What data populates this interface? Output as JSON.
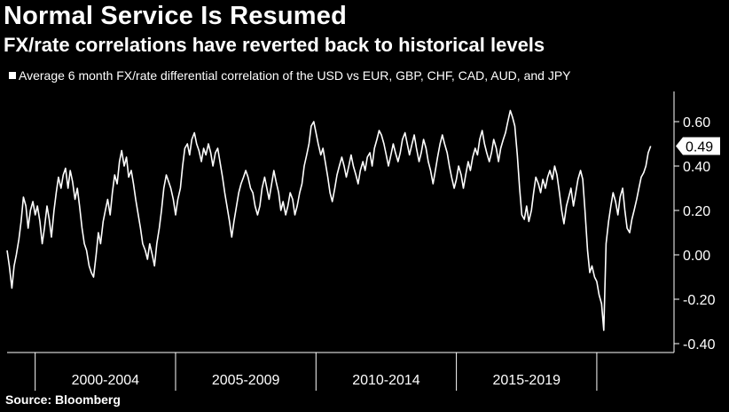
{
  "header": {
    "title": "Normal Service Is Resumed",
    "subtitle": "FX/rate correlations have reverted back to historical levels"
  },
  "footer": {
    "source": "Source: Bloomberg"
  },
  "colors": {
    "background": "#000000",
    "line": "#ffffff",
    "text": "#ffffff"
  },
  "chart_data": {
    "type": "line",
    "title": "Normal Service Is Resumed",
    "subtitle": "FX/rate correlations have reverted back to historical levels",
    "xlabel": "",
    "ylabel": "",
    "legend_position": "top-left",
    "grid": false,
    "ylim": [
      -0.42,
      0.68
    ],
    "xlim": [
      1999.0,
      2022.75
    ],
    "x_categories": [
      "2000-2004",
      "2005-2009",
      "2010-2014",
      "2015-2019"
    ],
    "y_ticks": [
      0.6,
      0.4,
      0.2,
      0.0,
      -0.2,
      -0.4
    ],
    "y_tick_labels": [
      "0.60",
      "0.40",
      "0.20",
      "0.00",
      "-0.20",
      "-0.40"
    ],
    "last_value_label": "0.49",
    "series": [
      {
        "name": "Average 6 month FX/rate differential correlation of the USD vs EUR, GBP, CHF, CAD, AUD, and JPY",
        "color": "#ffffff",
        "points": [
          [
            1999.0,
            0.02
          ],
          [
            1999.08,
            -0.05
          ],
          [
            1999.17,
            -0.15
          ],
          [
            1999.25,
            -0.05
          ],
          [
            1999.33,
            0.0
          ],
          [
            1999.42,
            0.07
          ],
          [
            1999.5,
            0.15
          ],
          [
            1999.58,
            0.26
          ],
          [
            1999.67,
            0.22
          ],
          [
            1999.75,
            0.12
          ],
          [
            1999.83,
            0.2
          ],
          [
            1999.92,
            0.24
          ],
          [
            2000.0,
            0.18
          ],
          [
            2000.08,
            0.22
          ],
          [
            2000.17,
            0.15
          ],
          [
            2000.25,
            0.05
          ],
          [
            2000.33,
            0.12
          ],
          [
            2000.42,
            0.22
          ],
          [
            2000.5,
            0.16
          ],
          [
            2000.58,
            0.08
          ],
          [
            2000.67,
            0.2
          ],
          [
            2000.75,
            0.28
          ],
          [
            2000.83,
            0.35
          ],
          [
            2000.92,
            0.3
          ],
          [
            2001.0,
            0.36
          ],
          [
            2001.08,
            0.39
          ],
          [
            2001.17,
            0.3
          ],
          [
            2001.25,
            0.38
          ],
          [
            2001.33,
            0.33
          ],
          [
            2001.42,
            0.25
          ],
          [
            2001.5,
            0.3
          ],
          [
            2001.58,
            0.22
          ],
          [
            2001.67,
            0.12
          ],
          [
            2001.75,
            0.05
          ],
          [
            2001.83,
            0.02
          ],
          [
            2001.92,
            -0.05
          ],
          [
            2002.0,
            -0.08
          ],
          [
            2002.08,
            -0.1
          ],
          [
            2002.17,
            0.0
          ],
          [
            2002.25,
            0.1
          ],
          [
            2002.33,
            0.05
          ],
          [
            2002.42,
            0.15
          ],
          [
            2002.5,
            0.2
          ],
          [
            2002.58,
            0.25
          ],
          [
            2002.67,
            0.18
          ],
          [
            2002.75,
            0.28
          ],
          [
            2002.83,
            0.36
          ],
          [
            2002.92,
            0.32
          ],
          [
            2003.0,
            0.42
          ],
          [
            2003.08,
            0.47
          ],
          [
            2003.17,
            0.4
          ],
          [
            2003.25,
            0.44
          ],
          [
            2003.33,
            0.35
          ],
          [
            2003.42,
            0.38
          ],
          [
            2003.5,
            0.32
          ],
          [
            2003.58,
            0.25
          ],
          [
            2003.67,
            0.18
          ],
          [
            2003.75,
            0.12
          ],
          [
            2003.83,
            0.05
          ],
          [
            2003.92,
            0.02
          ],
          [
            2004.0,
            -0.02
          ],
          [
            2004.08,
            0.05
          ],
          [
            2004.17,
            0.0
          ],
          [
            2004.25,
            -0.05
          ],
          [
            2004.33,
            0.05
          ],
          [
            2004.42,
            0.12
          ],
          [
            2004.5,
            0.2
          ],
          [
            2004.58,
            0.3
          ],
          [
            2004.67,
            0.36
          ],
          [
            2004.75,
            0.33
          ],
          [
            2004.83,
            0.3
          ],
          [
            2004.92,
            0.25
          ],
          [
            2005.0,
            0.18
          ],
          [
            2005.08,
            0.25
          ],
          [
            2005.17,
            0.3
          ],
          [
            2005.25,
            0.4
          ],
          [
            2005.33,
            0.48
          ],
          [
            2005.42,
            0.5
          ],
          [
            2005.5,
            0.45
          ],
          [
            2005.58,
            0.52
          ],
          [
            2005.67,
            0.55
          ],
          [
            2005.75,
            0.5
          ],
          [
            2005.83,
            0.47
          ],
          [
            2005.92,
            0.42
          ],
          [
            2006.0,
            0.48
          ],
          [
            2006.08,
            0.45
          ],
          [
            2006.17,
            0.5
          ],
          [
            2006.25,
            0.46
          ],
          [
            2006.33,
            0.4
          ],
          [
            2006.42,
            0.46
          ],
          [
            2006.5,
            0.48
          ],
          [
            2006.58,
            0.42
          ],
          [
            2006.67,
            0.35
          ],
          [
            2006.75,
            0.28
          ],
          [
            2006.83,
            0.22
          ],
          [
            2006.92,
            0.15
          ],
          [
            2007.0,
            0.08
          ],
          [
            2007.08,
            0.15
          ],
          [
            2007.17,
            0.22
          ],
          [
            2007.25,
            0.28
          ],
          [
            2007.33,
            0.32
          ],
          [
            2007.42,
            0.35
          ],
          [
            2007.5,
            0.38
          ],
          [
            2007.58,
            0.35
          ],
          [
            2007.67,
            0.3
          ],
          [
            2007.75,
            0.28
          ],
          [
            2007.83,
            0.22
          ],
          [
            2007.92,
            0.18
          ],
          [
            2008.0,
            0.22
          ],
          [
            2008.08,
            0.3
          ],
          [
            2008.17,
            0.35
          ],
          [
            2008.25,
            0.3
          ],
          [
            2008.33,
            0.25
          ],
          [
            2008.42,
            0.32
          ],
          [
            2008.5,
            0.38
          ],
          [
            2008.58,
            0.33
          ],
          [
            2008.67,
            0.28
          ],
          [
            2008.75,
            0.2
          ],
          [
            2008.83,
            0.24
          ],
          [
            2008.92,
            0.18
          ],
          [
            2009.0,
            0.22
          ],
          [
            2009.08,
            0.28
          ],
          [
            2009.17,
            0.25
          ],
          [
            2009.25,
            0.18
          ],
          [
            2009.33,
            0.22
          ],
          [
            2009.42,
            0.28
          ],
          [
            2009.5,
            0.32
          ],
          [
            2009.58,
            0.4
          ],
          [
            2009.67,
            0.45
          ],
          [
            2009.75,
            0.5
          ],
          [
            2009.83,
            0.58
          ],
          [
            2009.92,
            0.6
          ],
          [
            2010.0,
            0.55
          ],
          [
            2010.08,
            0.5
          ],
          [
            2010.17,
            0.45
          ],
          [
            2010.25,
            0.48
          ],
          [
            2010.33,
            0.42
          ],
          [
            2010.42,
            0.35
          ],
          [
            2010.5,
            0.28
          ],
          [
            2010.58,
            0.24
          ],
          [
            2010.67,
            0.3
          ],
          [
            2010.75,
            0.36
          ],
          [
            2010.83,
            0.4
          ],
          [
            2010.92,
            0.44
          ],
          [
            2011.0,
            0.4
          ],
          [
            2011.08,
            0.35
          ],
          [
            2011.17,
            0.4
          ],
          [
            2011.25,
            0.45
          ],
          [
            2011.33,
            0.4
          ],
          [
            2011.42,
            0.36
          ],
          [
            2011.5,
            0.32
          ],
          [
            2011.58,
            0.38
          ],
          [
            2011.67,
            0.42
          ],
          [
            2011.75,
            0.38
          ],
          [
            2011.83,
            0.44
          ],
          [
            2011.92,
            0.46
          ],
          [
            2012.0,
            0.4
          ],
          [
            2012.08,
            0.48
          ],
          [
            2012.17,
            0.52
          ],
          [
            2012.25,
            0.56
          ],
          [
            2012.33,
            0.54
          ],
          [
            2012.42,
            0.5
          ],
          [
            2012.5,
            0.45
          ],
          [
            2012.58,
            0.4
          ],
          [
            2012.67,
            0.45
          ],
          [
            2012.75,
            0.5
          ],
          [
            2012.83,
            0.46
          ],
          [
            2012.92,
            0.42
          ],
          [
            2013.0,
            0.46
          ],
          [
            2013.08,
            0.52
          ],
          [
            2013.17,
            0.55
          ],
          [
            2013.25,
            0.5
          ],
          [
            2013.33,
            0.45
          ],
          [
            2013.42,
            0.5
          ],
          [
            2013.5,
            0.54
          ],
          [
            2013.58,
            0.48
          ],
          [
            2013.67,
            0.42
          ],
          [
            2013.75,
            0.46
          ],
          [
            2013.83,
            0.52
          ],
          [
            2013.92,
            0.48
          ],
          [
            2014.0,
            0.42
          ],
          [
            2014.08,
            0.38
          ],
          [
            2014.17,
            0.32
          ],
          [
            2014.25,
            0.38
          ],
          [
            2014.33,
            0.44
          ],
          [
            2014.42,
            0.5
          ],
          [
            2014.5,
            0.54
          ],
          [
            2014.58,
            0.5
          ],
          [
            2014.67,
            0.46
          ],
          [
            2014.75,
            0.4
          ],
          [
            2014.83,
            0.35
          ],
          [
            2014.92,
            0.3
          ],
          [
            2015.0,
            0.34
          ],
          [
            2015.08,
            0.4
          ],
          [
            2015.17,
            0.36
          ],
          [
            2015.25,
            0.3
          ],
          [
            2015.33,
            0.36
          ],
          [
            2015.42,
            0.42
          ],
          [
            2015.5,
            0.38
          ],
          [
            2015.58,
            0.44
          ],
          [
            2015.67,
            0.48
          ],
          [
            2015.75,
            0.45
          ],
          [
            2015.83,
            0.52
          ],
          [
            2015.92,
            0.56
          ],
          [
            2016.0,
            0.5
          ],
          [
            2016.08,
            0.46
          ],
          [
            2016.17,
            0.42
          ],
          [
            2016.25,
            0.46
          ],
          [
            2016.33,
            0.52
          ],
          [
            2016.42,
            0.48
          ],
          [
            2016.5,
            0.42
          ],
          [
            2016.58,
            0.48
          ],
          [
            2016.67,
            0.52
          ],
          [
            2016.75,
            0.55
          ],
          [
            2016.83,
            0.6
          ],
          [
            2016.92,
            0.65
          ],
          [
            2017.0,
            0.62
          ],
          [
            2017.08,
            0.58
          ],
          [
            2017.17,
            0.45
          ],
          [
            2017.25,
            0.3
          ],
          [
            2017.33,
            0.18
          ],
          [
            2017.42,
            0.16
          ],
          [
            2017.5,
            0.22
          ],
          [
            2017.58,
            0.15
          ],
          [
            2017.67,
            0.2
          ],
          [
            2017.75,
            0.28
          ],
          [
            2017.83,
            0.35
          ],
          [
            2017.92,
            0.32
          ],
          [
            2018.0,
            0.28
          ],
          [
            2018.08,
            0.34
          ],
          [
            2018.17,
            0.3
          ],
          [
            2018.25,
            0.35
          ],
          [
            2018.33,
            0.38
          ],
          [
            2018.42,
            0.34
          ],
          [
            2018.5,
            0.4
          ],
          [
            2018.58,
            0.36
          ],
          [
            2018.67,
            0.28
          ],
          [
            2018.75,
            0.2
          ],
          [
            2018.83,
            0.14
          ],
          [
            2018.92,
            0.22
          ],
          [
            2019.0,
            0.26
          ],
          [
            2019.08,
            0.3
          ],
          [
            2019.17,
            0.22
          ],
          [
            2019.25,
            0.28
          ],
          [
            2019.33,
            0.34
          ],
          [
            2019.42,
            0.38
          ],
          [
            2019.5,
            0.34
          ],
          [
            2019.58,
            0.2
          ],
          [
            2019.67,
            0.02
          ],
          [
            2019.75,
            -0.08
          ],
          [
            2019.83,
            -0.05
          ],
          [
            2019.92,
            -0.1
          ],
          [
            2020.0,
            -0.12
          ],
          [
            2020.08,
            -0.18
          ],
          [
            2020.17,
            -0.22
          ],
          [
            2020.25,
            -0.34
          ],
          [
            2020.33,
            0.05
          ],
          [
            2020.42,
            0.15
          ],
          [
            2020.5,
            0.22
          ],
          [
            2020.58,
            0.28
          ],
          [
            2020.67,
            0.24
          ],
          [
            2020.75,
            0.18
          ],
          [
            2020.83,
            0.26
          ],
          [
            2020.92,
            0.3
          ],
          [
            2021.0,
            0.2
          ],
          [
            2021.08,
            0.12
          ],
          [
            2021.17,
            0.1
          ],
          [
            2021.25,
            0.16
          ],
          [
            2021.33,
            0.2
          ],
          [
            2021.42,
            0.25
          ],
          [
            2021.5,
            0.3
          ],
          [
            2021.58,
            0.35
          ],
          [
            2021.67,
            0.37
          ],
          [
            2021.75,
            0.4
          ],
          [
            2021.83,
            0.46
          ],
          [
            2021.92,
            0.49
          ]
        ]
      }
    ]
  }
}
